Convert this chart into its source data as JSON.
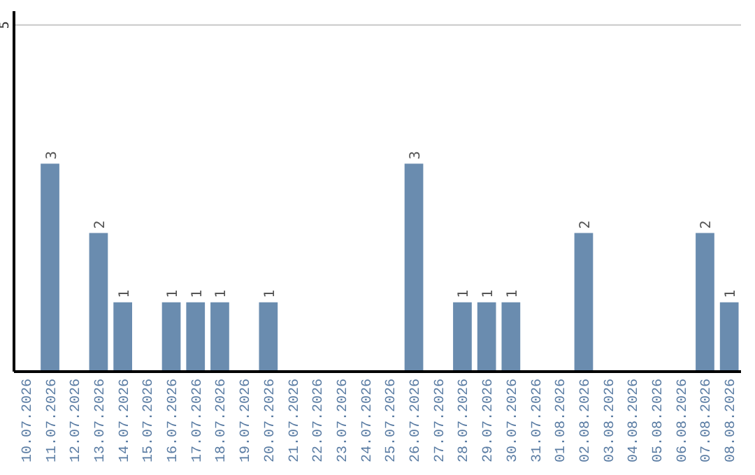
{
  "chart_data": {
    "type": "bar",
    "categories": [
      "10.07.2026",
      "11.07.2026",
      "12.07.2026",
      "13.07.2026",
      "14.07.2026",
      "15.07.2026",
      "16.07.2026",
      "17.07.2026",
      "18.07.2026",
      "19.07.2026",
      "20.07.2026",
      "21.07.2026",
      "22.07.2026",
      "23.07.2026",
      "24.07.2026",
      "25.07.2026",
      "26.07.2026",
      "27.07.2026",
      "28.07.2026",
      "29.07.2026",
      "30.07.2026",
      "31.07.2026",
      "01.08.2026",
      "02.08.2026",
      "03.08.2026",
      "04.08.2026",
      "05.08.2026",
      "06.08.2026",
      "07.08.2026",
      "08.08.2026"
    ],
    "values": [
      0,
      3,
      0,
      2,
      1,
      0,
      1,
      1,
      1,
      0,
      1,
      0,
      0,
      0,
      0,
      0,
      3,
      0,
      1,
      1,
      1,
      0,
      0,
      2,
      0,
      0,
      0,
      0,
      2,
      1
    ],
    "value_labels": [
      null,
      "3",
      null,
      "2",
      "1",
      null,
      "1",
      "1",
      "1",
      null,
      "1",
      null,
      null,
      null,
      null,
      null,
      "3",
      null,
      "1",
      "1",
      "1",
      null,
      null,
      "2",
      null,
      null,
      null,
      null,
      "2",
      "1"
    ],
    "color": "#6a8caf",
    "ylim": [
      0,
      5.2
    ],
    "yticks": [
      5
    ],
    "grid": "y"
  }
}
